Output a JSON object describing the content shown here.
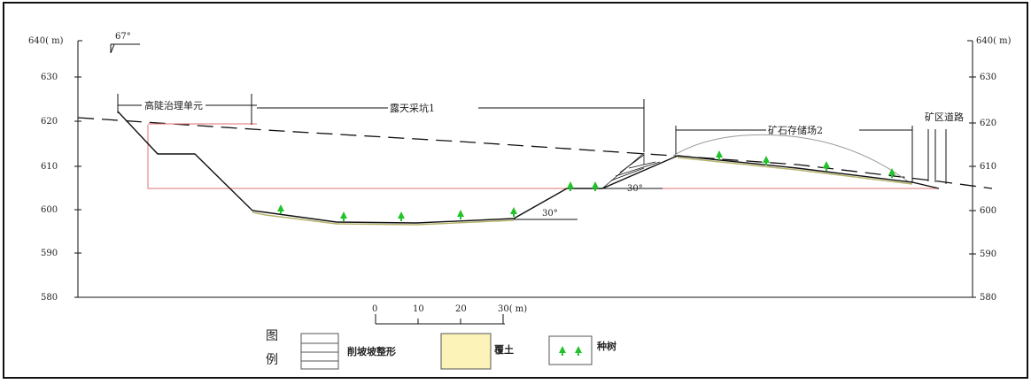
{
  "left_axis": {
    "top_label": "640( m)",
    "ticks": [
      {
        "value": 630,
        "label": "630"
      },
      {
        "value": 620,
        "label": "620"
      },
      {
        "value": 610,
        "label": "610"
      },
      {
        "value": 600,
        "label": "600"
      },
      {
        "value": 590,
        "label": "590"
      },
      {
        "value": 580,
        "label": "580"
      }
    ]
  },
  "right_axis": {
    "top_label": "640( m)",
    "ticks": [
      {
        "value": 630,
        "label": "630"
      },
      {
        "value": 620,
        "label": "620"
      },
      {
        "value": 610,
        "label": "610"
      },
      {
        "value": 600,
        "label": "600"
      },
      {
        "value": 590,
        "label": "590"
      },
      {
        "value": 580,
        "label": "580"
      }
    ]
  },
  "angles": {
    "top_left": "67°",
    "pit_bottom": "30°",
    "pit_right": "30°"
  },
  "sections": {
    "slope_unit": "高陡治理单元",
    "open_pit": "露天采坑1",
    "ore_storage": "矿石存储场2",
    "mine_road": "矿区道路"
  },
  "scale_bar": {
    "labels": [
      "0",
      "10",
      "20",
      "30( m)"
    ]
  },
  "legend": {
    "title_chars": [
      "图",
      "例"
    ],
    "terrain_label": "削坡坡整形",
    "soil_label": "覆土",
    "tree_label": "种树",
    "soil_color": "#fbf3b8",
    "tree_color": "#22c22a"
  }
}
